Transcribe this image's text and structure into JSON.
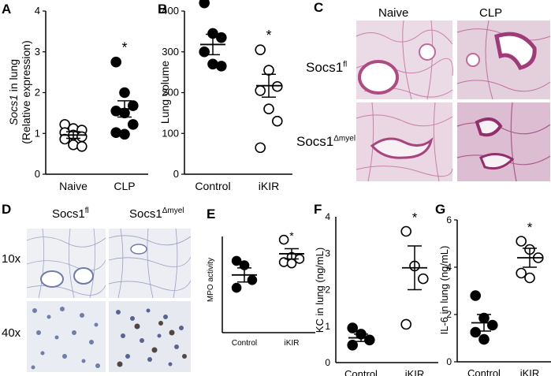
{
  "panels": {
    "A": {
      "letter": "A"
    },
    "B": {
      "letter": "B"
    },
    "C": {
      "letter": "C"
    },
    "D": {
      "letter": "D"
    },
    "E": {
      "letter": "E"
    },
    "F": {
      "letter": "F"
    },
    "G": {
      "letter": "G"
    }
  },
  "chart_data": [
    {
      "id": "A",
      "type": "scatter",
      "ylabel_italic": "Socs1",
      "ylabel_rest": " in lung",
      "ylabel_line2": "(Relative expression)",
      "categories": [
        "Naive",
        "CLP"
      ],
      "ylim": [
        0,
        4
      ],
      "yticks": [
        0,
        1,
        2,
        3,
        4
      ],
      "series": [
        {
          "category": "Naive",
          "filled": false,
          "values": [
            1.22,
            1.12,
            1.08,
            1.02,
            0.96,
            0.92,
            0.86,
            0.72,
            0.68
          ]
        },
        {
          "category": "CLP",
          "filled": true,
          "values": [
            2.75,
            2.0,
            1.68,
            1.55,
            1.5,
            1.22,
            1.02,
            0.98
          ]
        }
      ],
      "mean": [
        0.96,
        1.6
      ],
      "sem": [
        0.08,
        0.2
      ],
      "significance": [
        {
          "category": "CLP",
          "text": "*"
        }
      ]
    },
    {
      "id": "B",
      "type": "scatter",
      "ylabel": "Lung volume",
      "categories": [
        "Control",
        "iKIR"
      ],
      "ylim": [
        0,
        400
      ],
      "yticks": [
        0,
        100,
        200,
        300,
        400
      ],
      "series": [
        {
          "category": "Control",
          "filled": true,
          "values": [
            420,
            345,
            335,
            300,
            270,
            265
          ]
        },
        {
          "category": "iKIR",
          "filled": false,
          "values": [
            305,
            255,
            215,
            205,
            160,
            130,
            65
          ]
        }
      ],
      "mean": [
        318,
        217
      ],
      "sem": [
        25,
        28
      ],
      "significance": [
        {
          "category": "iKIR",
          "text": "*"
        }
      ]
    },
    {
      "id": "E",
      "type": "scatter",
      "ylabel": "MPO activity",
      "categories": [
        "Control",
        "iKIR"
      ],
      "ylim": [
        0,
        150
      ],
      "series": [
        {
          "category": "Control",
          "filled": true,
          "values": [
            112,
            105,
            82,
            70
          ]
        },
        {
          "category": "iKIR",
          "filled": false,
          "values": [
            145,
            118,
            115,
            110,
            108
          ]
        }
      ],
      "mean": [
        90,
        123
      ],
      "sem": [
        11,
        8
      ],
      "significance": [
        {
          "category": "iKIR",
          "text": "*"
        }
      ]
    },
    {
      "id": "F",
      "type": "scatter",
      "ylabel": "KC in lung (ng/mL)",
      "categories": [
        "Control",
        "iKIR"
      ],
      "ylim": [
        0,
        4
      ],
      "yticks": [
        0,
        1,
        2,
        3,
        4
      ],
      "series": [
        {
          "category": "Control",
          "filled": true,
          "values": [
            0.95,
            0.78,
            0.62,
            0.48
          ]
        },
        {
          "category": "iKIR",
          "filled": false,
          "values": [
            3.6,
            2.65,
            2.3,
            1.05
          ]
        }
      ],
      "mean": [
        0.68,
        2.6
      ],
      "sem": [
        0.1,
        0.6
      ],
      "significance": [
        {
          "category": "iKIR",
          "text": "*"
        }
      ]
    },
    {
      "id": "G",
      "type": "scatter",
      "ylabel": "IL-6 in lung (ng/mL)",
      "categories": [
        "Control",
        "iKIR"
      ],
      "ylim": [
        0,
        6
      ],
      "yticks": [
        0,
        2,
        4,
        6
      ],
      "series": [
        {
          "category": "Control",
          "filled": true,
          "values": [
            2.8,
            1.85,
            1.55,
            1.25,
            0.95
          ]
        },
        {
          "category": "iKIR",
          "filled": false,
          "values": [
            5.1,
            4.75,
            4.4,
            3.75,
            3.55
          ]
        }
      ],
      "mean": [
        1.65,
        4.4
      ],
      "sem": [
        0.35,
        0.4
      ],
      "significance": [
        {
          "category": "iKIR",
          "text": "*"
        }
      ]
    }
  ],
  "histology_C": {
    "col_labels": [
      "Naive",
      "CLP"
    ],
    "row_labels": [
      {
        "base": "Socs1",
        "sup": "fl"
      },
      {
        "base": "Socs1",
        "sup": "Δmyel"
      }
    ],
    "stain_color": "#c06a9a",
    "background_color": "#eadbe6"
  },
  "histology_D": {
    "col_labels": [
      {
        "base": "Socs1",
        "sup": "fl"
      },
      {
        "base": "Socs1",
        "sup": "Δmyel"
      }
    ],
    "row_labels": [
      "10x",
      "40x"
    ],
    "tissue_color": "#8a93b8",
    "background_color": "#eef0f4"
  }
}
